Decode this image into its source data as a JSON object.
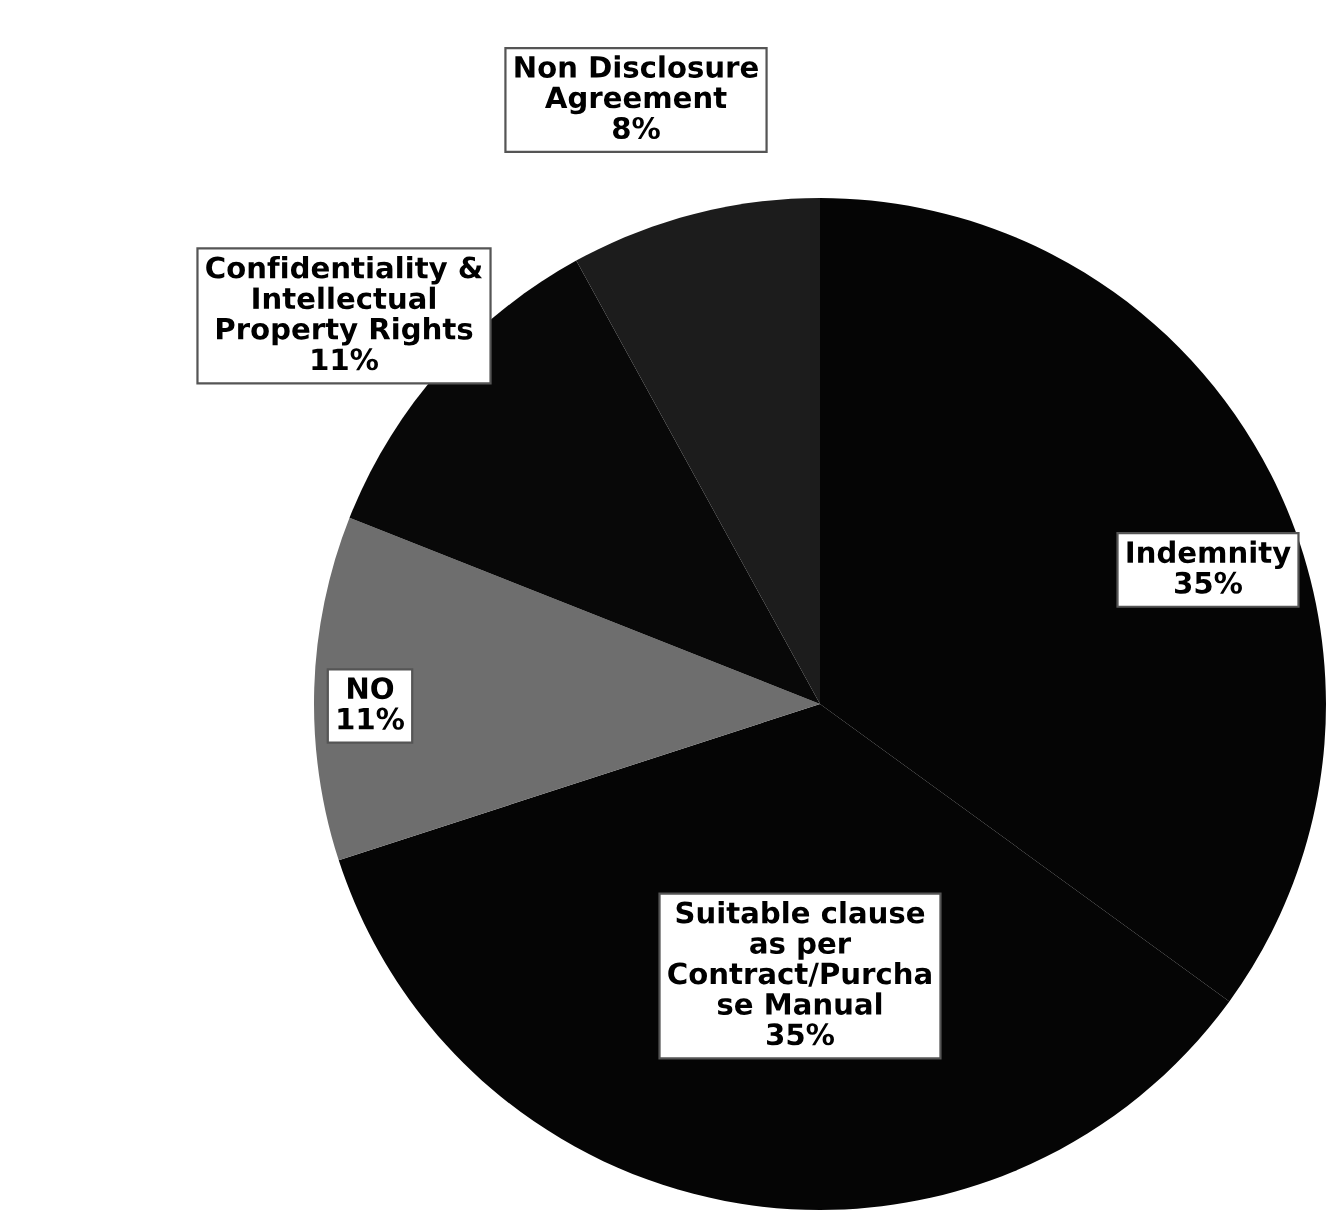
{
  "chart_data": {
    "type": "pie",
    "categories": [
      "Indemnity",
      "Suitable clause\nas per\nContract/Purcha\nse Manual",
      "NO",
      "Confidentiality &\nIntellectual\nProperty Rights",
      "Non Disclosure\nAgreement"
    ],
    "values": [
      35,
      35,
      11,
      11,
      8
    ],
    "value_labels": [
      "35%",
      "35%",
      "11%",
      "11%",
      "8%"
    ],
    "colors": [
      "#050505",
      "#050505",
      "#6e6e6e",
      "#080808",
      "#1c1c1c"
    ],
    "legend": false
  }
}
